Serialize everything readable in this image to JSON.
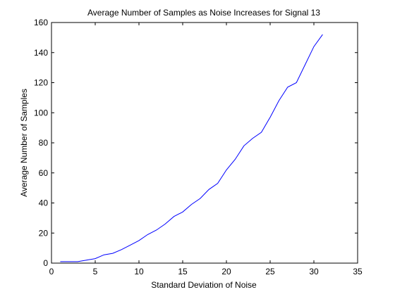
{
  "chart_data": {
    "type": "line",
    "title": "Average Number of Samples as Noise Increases for Signal 13",
    "xlabel": "Standard Deviation of Noise",
    "ylabel": "Average Number of Samples",
    "xlim": [
      0,
      35
    ],
    "ylim": [
      0,
      160
    ],
    "x_ticks": [
      0,
      5,
      10,
      15,
      20,
      25,
      30,
      35
    ],
    "y_ticks": [
      0,
      20,
      40,
      60,
      80,
      100,
      120,
      140,
      160
    ],
    "grid": false,
    "legend": "none",
    "series": [
      {
        "color": "#0000ff",
        "x": [
          1,
          2,
          3,
          4,
          5,
          6,
          7,
          8,
          9,
          10,
          11,
          12,
          13,
          14,
          15,
          16,
          17,
          18,
          19,
          20,
          21,
          22,
          23,
          24,
          25,
          26,
          27,
          28,
          29,
          30,
          31
        ],
        "y": [
          1,
          1,
          1,
          2,
          3,
          5.5,
          6.5,
          9,
          12,
          15,
          19,
          22,
          26,
          31,
          34,
          39,
          43,
          49,
          53,
          62,
          69,
          78,
          83,
          87,
          97,
          108,
          117,
          120,
          132,
          144,
          152
        ]
      }
    ]
  }
}
